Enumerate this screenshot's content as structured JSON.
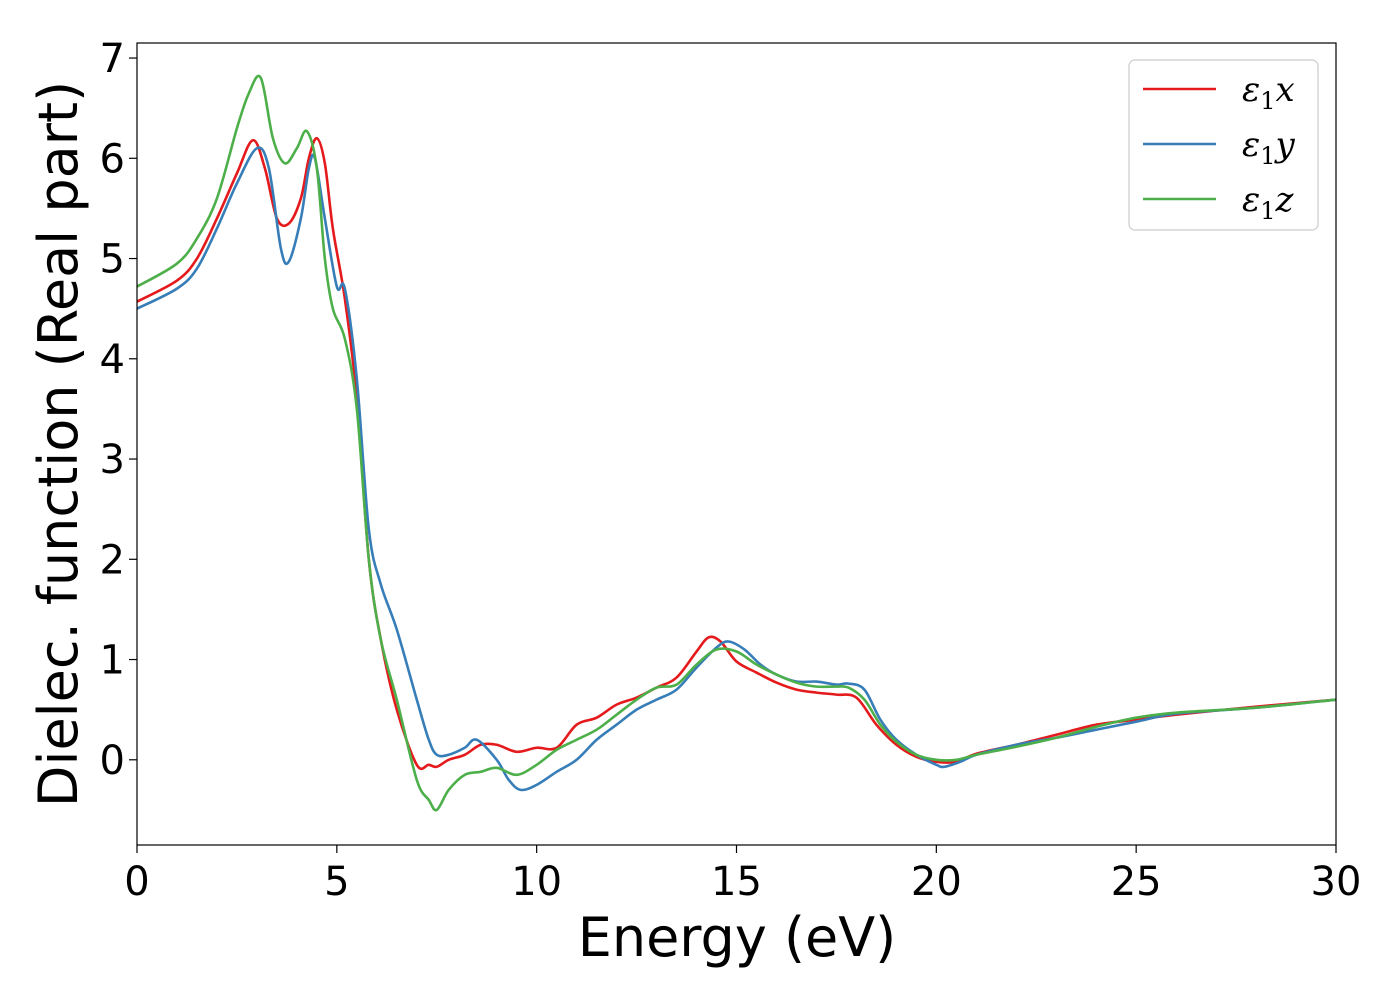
{
  "chart_data": {
    "type": "line",
    "xlabel": "Energy (eV)",
    "ylabel": "Dielec. function (Real part)",
    "xlim": [
      0,
      30
    ],
    "ylim": [
      -0.85,
      7.15
    ],
    "xticks": [
      0,
      5,
      10,
      15,
      20,
      25,
      30
    ],
    "yticks": [
      0,
      1,
      2,
      3,
      4,
      5,
      6,
      7
    ],
    "grid": false,
    "legend_position": "top-right",
    "series": [
      {
        "name": "ε1x",
        "legend_base": "ε",
        "legend_sub": "1",
        "legend_var": "x",
        "color": "#e41a1c",
        "x": [
          0,
          1,
          1.5,
          2,
          2.5,
          2.9,
          3.2,
          3.5,
          3.8,
          4.1,
          4.3,
          4.5,
          4.7,
          4.9,
          5.2,
          5.5,
          5.8,
          6.1,
          6.5,
          7,
          7.3,
          7.5,
          7.8,
          8.2,
          8.6,
          9,
          9.5,
          10,
          10.5,
          11,
          11.5,
          12,
          12.5,
          13,
          13.5,
          14,
          14.3,
          14.6,
          15,
          15.5,
          16,
          16.5,
          17,
          17.5,
          18,
          18.5,
          19,
          19.5,
          20,
          20.5,
          21,
          22,
          23,
          24,
          25,
          26,
          28,
          30
        ],
        "y": [
          4.57,
          4.78,
          5.0,
          5.4,
          5.85,
          6.18,
          5.9,
          5.4,
          5.35,
          5.6,
          6.0,
          6.2,
          5.95,
          5.3,
          4.6,
          3.6,
          2.0,
          1.2,
          0.5,
          -0.05,
          -0.05,
          -0.07,
          0.0,
          0.05,
          0.15,
          0.15,
          0.08,
          0.12,
          0.12,
          0.35,
          0.42,
          0.55,
          0.62,
          0.72,
          0.82,
          1.08,
          1.22,
          1.18,
          0.98,
          0.87,
          0.77,
          0.7,
          0.67,
          0.65,
          0.62,
          0.35,
          0.15,
          0.03,
          -0.02,
          -0.02,
          0.06,
          0.15,
          0.25,
          0.35,
          0.4,
          0.45,
          0.53,
          0.6
        ]
      },
      {
        "name": "ε1y",
        "legend_base": "ε",
        "legend_sub": "1",
        "legend_var": "y",
        "color": "#377eb8",
        "x": [
          0,
          1,
          1.5,
          2,
          2.5,
          3.0,
          3.3,
          3.6,
          3.8,
          4.1,
          4.3,
          4.45,
          4.7,
          5.0,
          5.2,
          5.5,
          5.8,
          6.1,
          6.5,
          7,
          7.3,
          7.5,
          7.8,
          8.2,
          8.5,
          9,
          9.3,
          9.6,
          10,
          10.5,
          11,
          11.5,
          12,
          12.5,
          13,
          13.5,
          14,
          14.5,
          14.8,
          15.2,
          15.6,
          16,
          16.5,
          17,
          17.5,
          17.8,
          18.2,
          18.6,
          19,
          19.5,
          20,
          20.2,
          20.6,
          21,
          22,
          23,
          24,
          25,
          26,
          28,
          30
        ],
        "y": [
          4.5,
          4.7,
          4.9,
          5.3,
          5.75,
          6.1,
          5.9,
          5.1,
          4.97,
          5.4,
          5.9,
          6.0,
          5.4,
          4.72,
          4.7,
          3.8,
          2.3,
          1.75,
          1.3,
          0.6,
          0.2,
          0.05,
          0.05,
          0.12,
          0.2,
          0.0,
          -0.2,
          -0.3,
          -0.25,
          -0.12,
          0.0,
          0.2,
          0.35,
          0.5,
          0.6,
          0.7,
          0.92,
          1.12,
          1.18,
          1.1,
          0.95,
          0.85,
          0.78,
          0.78,
          0.75,
          0.76,
          0.7,
          0.4,
          0.2,
          0.05,
          -0.05,
          -0.07,
          -0.02,
          0.05,
          0.15,
          0.22,
          0.3,
          0.38,
          0.46,
          0.52,
          0.6
        ]
      },
      {
        "name": "ε1z",
        "legend_base": "ε",
        "legend_sub": "1",
        "legend_var": "z",
        "color": "#4daf4a",
        "x": [
          0,
          1,
          1.5,
          2,
          2.5,
          2.8,
          3.1,
          3.4,
          3.7,
          4.0,
          4.25,
          4.5,
          4.7,
          4.9,
          5.2,
          5.5,
          5.8,
          6.1,
          6.5,
          7,
          7.3,
          7.5,
          7.8,
          8.2,
          8.6,
          9,
          9.5,
          10,
          10.5,
          11,
          11.5,
          12,
          12.5,
          13,
          13.5,
          14,
          14.5,
          15,
          15.5,
          16,
          16.5,
          17,
          17.5,
          17.8,
          18.2,
          18.6,
          19,
          19.5,
          20,
          20.5,
          21,
          22,
          23,
          24,
          25,
          26,
          28,
          30
        ],
        "y": [
          4.72,
          4.95,
          5.2,
          5.6,
          6.3,
          6.65,
          6.8,
          6.2,
          5.95,
          6.1,
          6.27,
          5.9,
          5.0,
          4.5,
          4.2,
          3.5,
          2.0,
          1.2,
          0.6,
          -0.2,
          -0.4,
          -0.5,
          -0.3,
          -0.15,
          -0.12,
          -0.08,
          -0.15,
          -0.05,
          0.1,
          0.2,
          0.3,
          0.45,
          0.6,
          0.72,
          0.75,
          0.95,
          1.1,
          1.08,
          0.95,
          0.85,
          0.77,
          0.73,
          0.73,
          0.72,
          0.6,
          0.35,
          0.18,
          0.05,
          0.0,
          0.0,
          0.05,
          0.13,
          0.22,
          0.33,
          0.42,
          0.47,
          0.52,
          0.6
        ]
      }
    ]
  }
}
